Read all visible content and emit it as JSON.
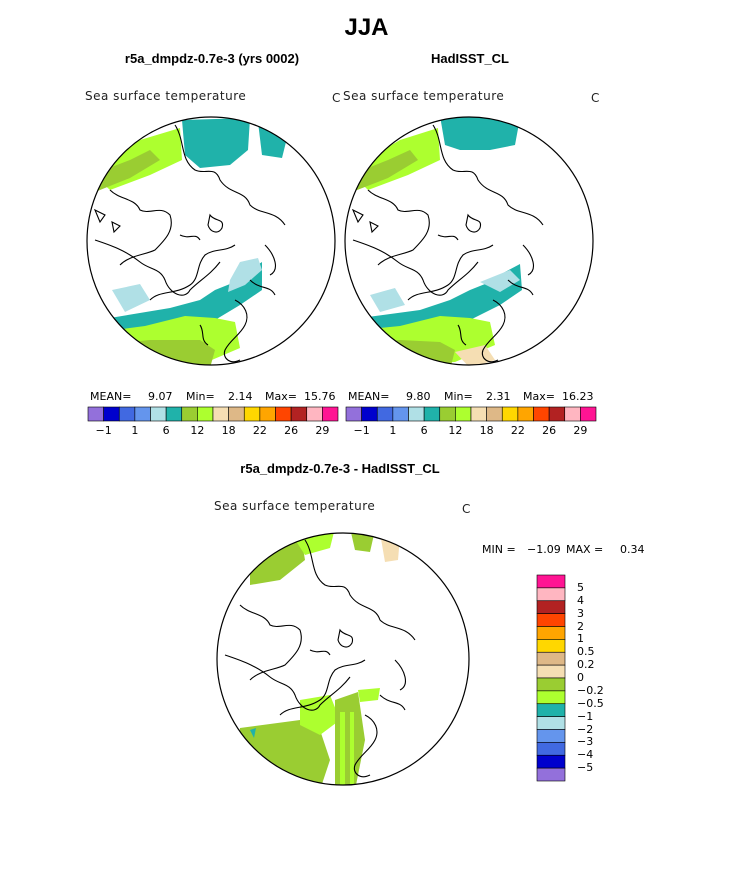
{
  "title": "JJA",
  "panels": {
    "left": {
      "title": "r5a_dmpdz-0.7e-3 (yrs 0002)",
      "field": "Sea surface temperature",
      "unit": "C",
      "stats": {
        "mean_label": "MEAN=",
        "mean": "9.07",
        "min_label": "Min=",
        "min": "2.14",
        "max_label": "Max=",
        "max": "15.76"
      }
    },
    "right": {
      "title": "HadISST_CL",
      "field": "Sea surface temperature",
      "unit": "C",
      "stats": {
        "mean_label": "MEAN=",
        "mean": "9.80",
        "min_label": "Min=",
        "min": "2.31",
        "max_label": "Max=",
        "max": "16.23"
      }
    },
    "diff": {
      "title": "r5a_dmpdz-0.7e-3 - HadISST_CL",
      "field": "Sea surface temperature",
      "unit": "C",
      "stats": {
        "min_label": "MIN =",
        "min": "−1.09",
        "max_label": "MAX =",
        "max": "0.34"
      }
    }
  },
  "colorbar_abs": {
    "colors": [
      "#9370db",
      "#0000cd",
      "#4169e1",
      "#6495ed",
      "#b0e0e6",
      "#20b2aa",
      "#9acd32",
      "#adff2f",
      "#f5deb3",
      "#deb887",
      "#ffd700",
      "#ffa500",
      "#ff4500",
      "#b22222",
      "#ffb6c1",
      "#ff1493"
    ],
    "ticks": [
      "−1",
      "1",
      "6",
      "12",
      "18",
      "22",
      "26",
      "29"
    ]
  },
  "colorbar_diff": {
    "colors_top_to_bottom": [
      "#ff1493",
      "#ffb6c1",
      "#b22222",
      "#ff4500",
      "#ffa500",
      "#ffd700",
      "#deb887",
      "#f5deb3",
      "#9acd32",
      "#adff2f",
      "#20b2aa",
      "#b0e0e6",
      "#6495ed",
      "#4169e1",
      "#0000cd",
      "#9370db"
    ],
    "labels": [
      "5",
      "4",
      "3",
      "2",
      "1",
      "0.5",
      "0.2",
      "0",
      "−0.2",
      "−0.5",
      "−1",
      "−2",
      "−3",
      "−4",
      "−5"
    ]
  }
}
